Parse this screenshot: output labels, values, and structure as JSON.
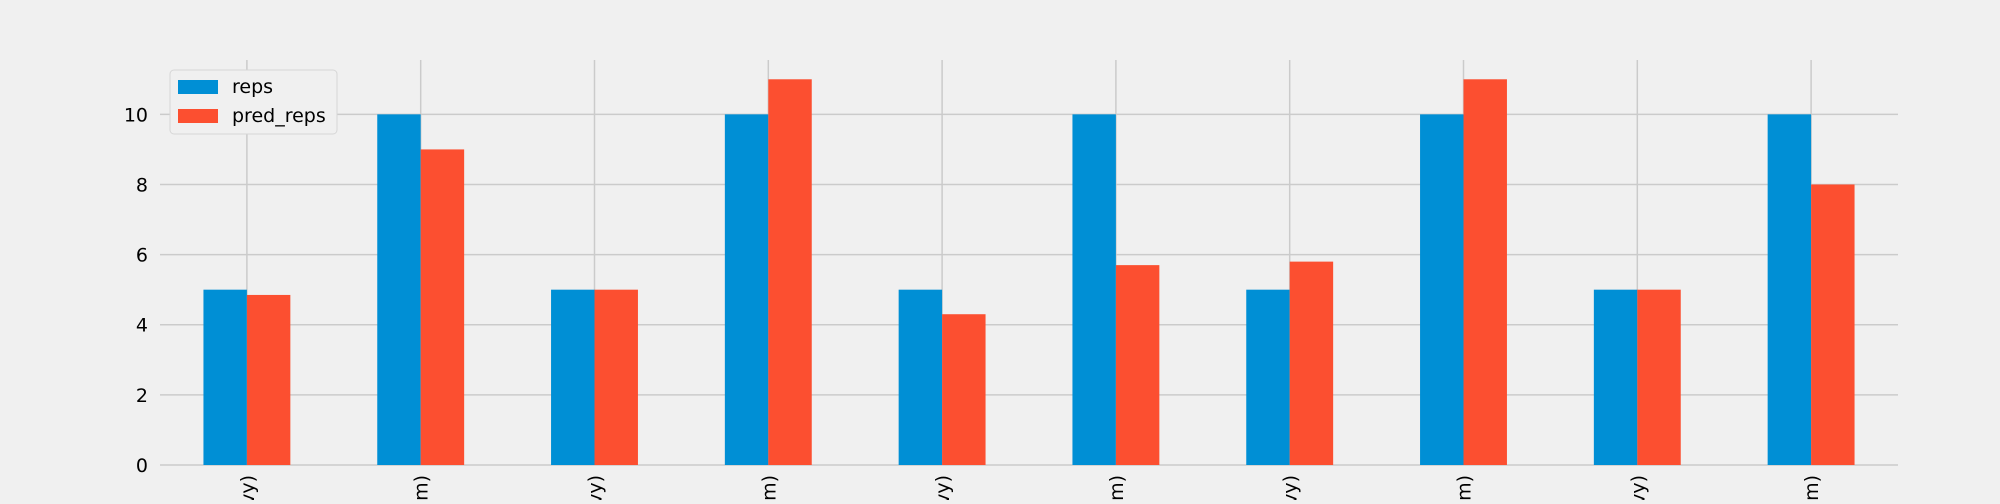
{
  "chart_data": {
    "type": "bar",
    "title": "",
    "xlabel": "",
    "ylabel": "",
    "categories": [
      "vy)",
      "m)",
      "vy)",
      "m)",
      "vy)",
      "m)",
      "vy)",
      "m)",
      "vy)",
      "m)"
    ],
    "series": [
      {
        "name": "reps",
        "color": "#008fd5",
        "values": [
          5,
          10,
          5,
          10,
          5,
          10,
          5,
          10,
          5,
          10
        ]
      },
      {
        "name": "pred_reps",
        "color": "#fc4f30",
        "values": [
          4.85,
          9.0,
          5.0,
          11.0,
          4.3,
          5.7,
          5.8,
          11.0,
          5.0,
          8.0
        ]
      }
    ],
    "ylim": [
      0,
      11.55
    ],
    "yticks": [
      0,
      2,
      4,
      6,
      8,
      10
    ],
    "grid": true,
    "legend": {
      "position": "top-left",
      "entries": [
        "reps",
        "pred_reps"
      ]
    },
    "colors": {
      "background": "#f0f0f0",
      "grid": "#cbcbcb",
      "text": "#000000"
    }
  }
}
